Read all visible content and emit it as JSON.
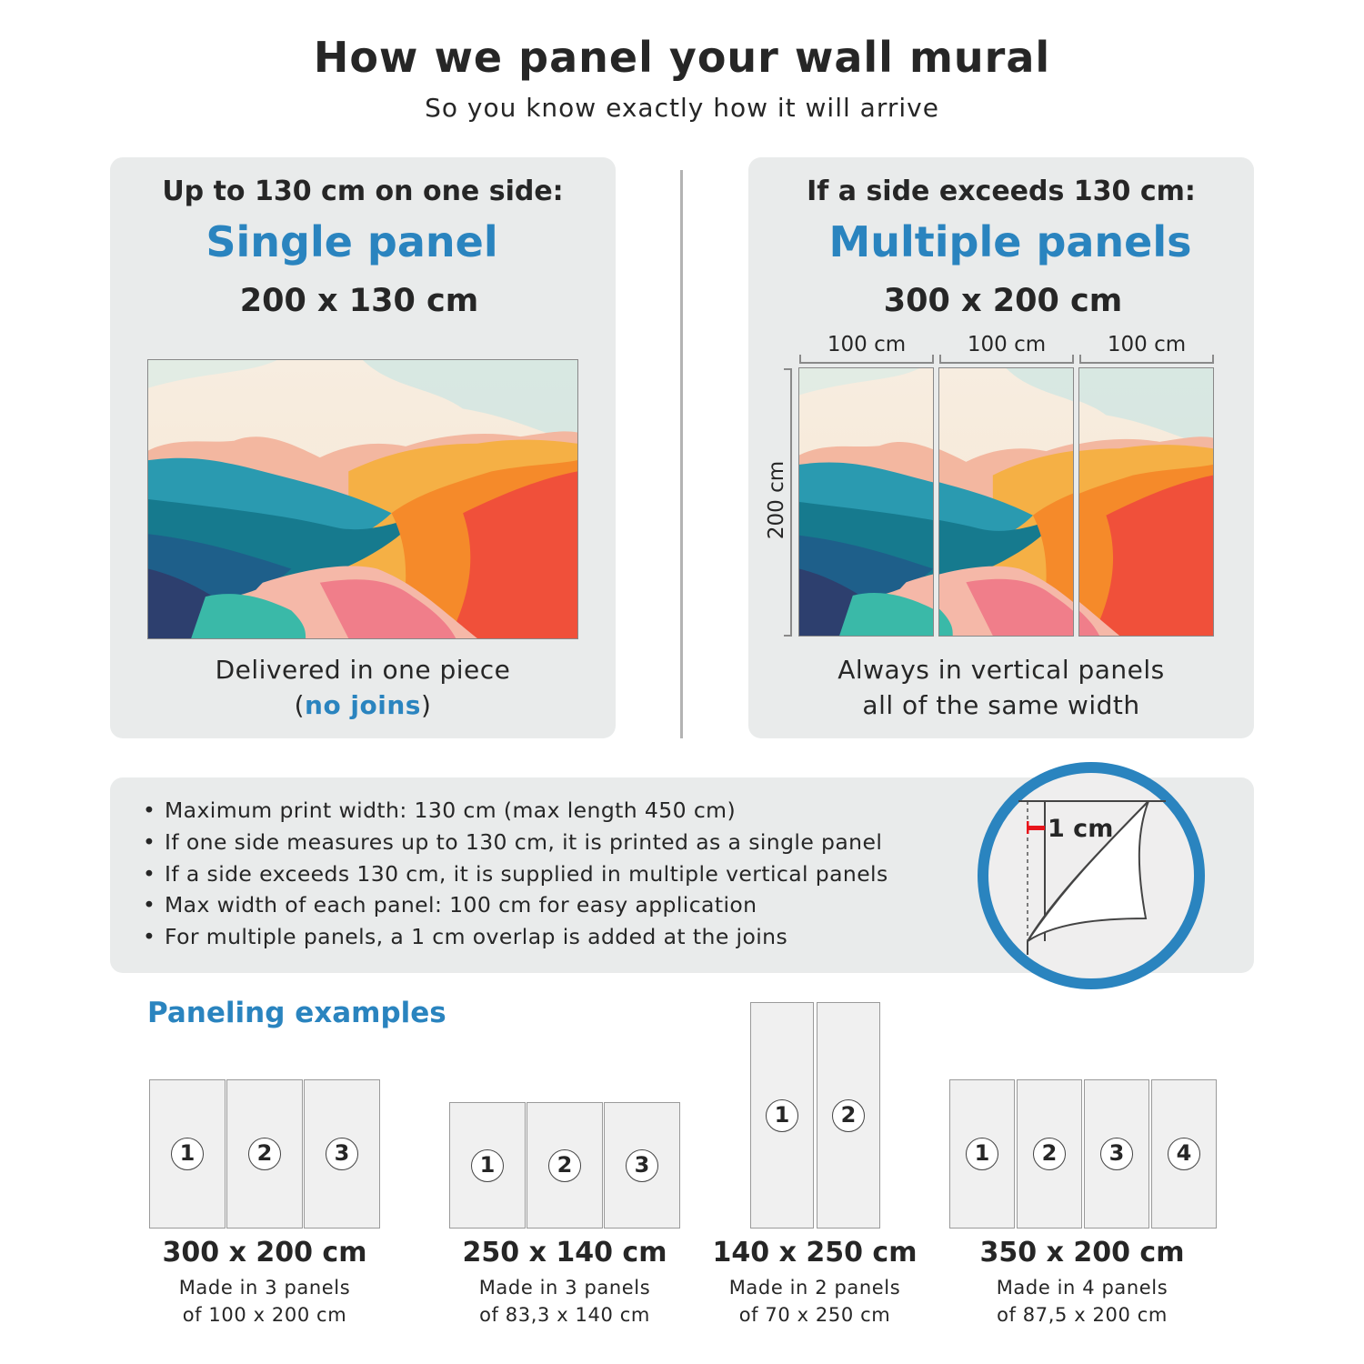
{
  "header": {
    "title": "How we panel your wall mural",
    "subtitle": "So you know exactly how it will arrive"
  },
  "single": {
    "heading": "Up to 130 cm on one side:",
    "title": "Single panel",
    "size": "200 x 130 cm",
    "caption_line1": "Delivered in one piece",
    "caption_paren_open": "(",
    "caption_highlight": "no joins",
    "caption_paren_close": ")"
  },
  "multiple": {
    "heading": "If a side exceeds 130 cm:",
    "title": "Multiple panels",
    "size": "300 x 200 cm",
    "panel_widths": [
      "100 cm",
      "100 cm",
      "100 cm"
    ],
    "height_label": "200 cm",
    "caption_line1": "Always in vertical panels",
    "caption_line2": "all of the same width"
  },
  "info": {
    "bullets": [
      "Maximum print width: 130 cm (max length 450 cm)",
      "If one side measures up to 130 cm, it is printed as a single panel",
      "If a side exceeds 130 cm, it is supplied in multiple vertical panels",
      "Max width of each panel: 100 cm for easy application",
      "For multiple panels, a 1 cm overlap is added at the joins"
    ],
    "overlap_label": "1 cm"
  },
  "examples": {
    "heading": "Paneling examples",
    "items": [
      {
        "size": "300 x 200 cm",
        "line1": "Made in 3 panels",
        "line2": "of 100 x 200 cm",
        "panels": [
          "1",
          "2",
          "3"
        ]
      },
      {
        "size": "250 x 140 cm",
        "line1": "Made in 3 panels",
        "line2": "of 83,3 x 140 cm",
        "panels": [
          "1",
          "2",
          "3"
        ]
      },
      {
        "size": "140 x 250 cm",
        "line1": "Made in 2 panels",
        "line2": "of 70 x 250 cm",
        "panels": [
          "1",
          "2"
        ]
      },
      {
        "size": "350 x 200 cm",
        "line1": "Made in 4 panels",
        "line2": "of 87,5 x 200 cm",
        "panels": [
          "1",
          "2",
          "3",
          "4"
        ]
      }
    ]
  },
  "colors": {
    "accent": "#2a84bf",
    "card_bg": "#e9ebeb",
    "overlap_marker": "#e8141b"
  }
}
